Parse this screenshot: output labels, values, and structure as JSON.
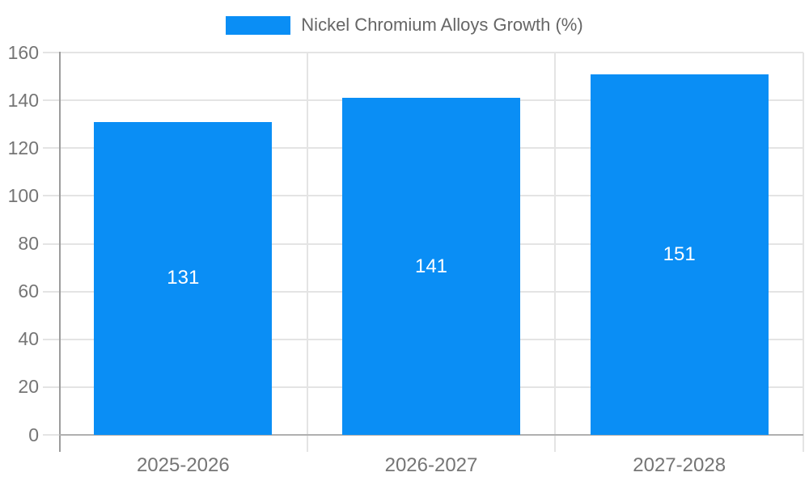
{
  "chart_data": {
    "type": "bar",
    "title": "Nickel Chromium Alloys Growth (%)",
    "categories": [
      "2025-2026",
      "2026-2027",
      "2027-2028"
    ],
    "values": [
      131,
      141,
      151
    ],
    "xlabel": "",
    "ylabel": "",
    "ylim": [
      0,
      160
    ],
    "yticks": [
      0,
      20,
      40,
      60,
      80,
      100,
      120,
      140,
      160
    ],
    "grid": true,
    "legend_position": "top-center",
    "bar_labels": [
      "131",
      "141",
      "151"
    ],
    "y_tick_labels": [
      "0",
      "20",
      "40",
      "60",
      "80",
      "100",
      "120",
      "140",
      "160"
    ]
  },
  "colors": {
    "background": "#FFFFFF",
    "bar": "#0A8EF5",
    "bar_label_text": "#FFFFFF",
    "grid": "#E4E4E4",
    "axis_left": "#9C9C9C",
    "axis_bottom": "#B0B0B0",
    "tick_text": "#757575",
    "legend_text": "#666666"
  }
}
